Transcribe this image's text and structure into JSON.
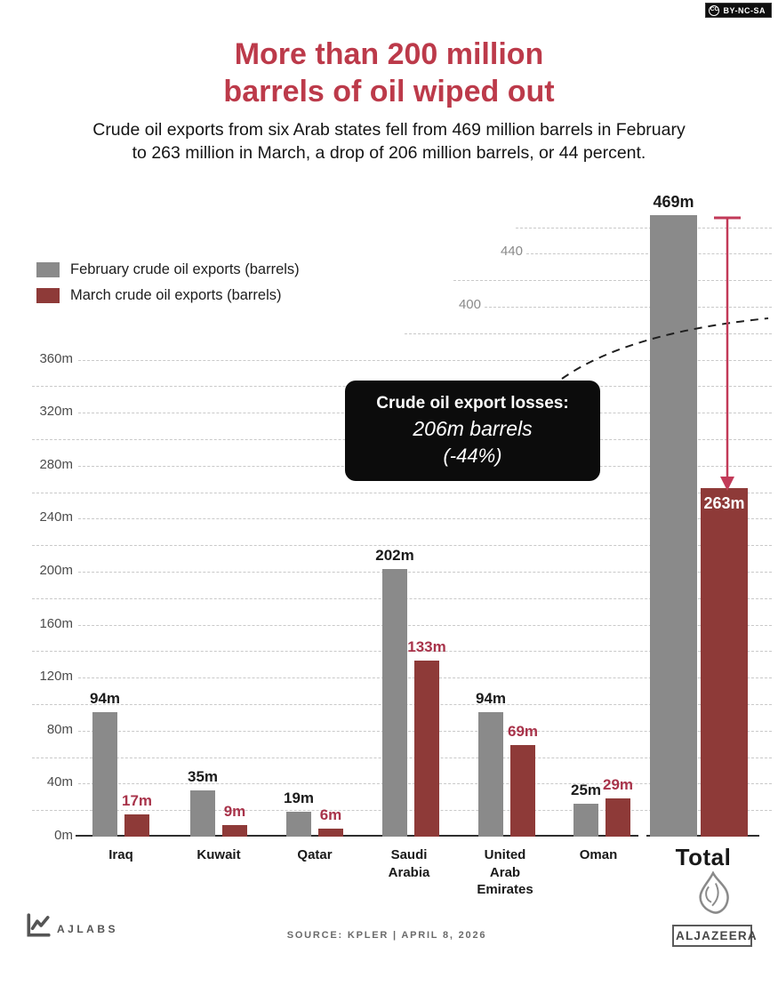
{
  "license_badge": {
    "icon": "CC",
    "label": "BY-NC-SA"
  },
  "header": {
    "title_line1": "More than 200 million",
    "title_line2": "barrels of oil wiped out",
    "subtitle_line1": "Crude oil exports from six Arab states fell from 469 million barrels in February",
    "subtitle_line2": "to 263 million in March, a drop of 206 million barrels, or 44 percent."
  },
  "colors": {
    "title": "#bc3a4a",
    "feb_bar": "#8a8a8a",
    "mar_bar": "#8e3a38",
    "feb_value_label": "#1b1b1b",
    "mar_value_label": "#a8334a",
    "total_mar_value_label": "#ffffff",
    "drop_arrow": "#c23a58",
    "gridline": "#c9c9c9"
  },
  "legend": {
    "items": [
      {
        "label": "February crude oil exports (barrels)",
        "color": "#8a8a8a"
      },
      {
        "label": "March crude oil exports (barrels)",
        "color": "#8e3a38"
      }
    ]
  },
  "callout": {
    "title": "Crude oil export losses:",
    "value": "206m barrels",
    "percent": "(-44%)"
  },
  "chart_data": {
    "type": "bar",
    "title": "More than 200 million barrels of oil wiped out",
    "unit": "million barrels",
    "categories": [
      "Iraq",
      "Kuwait",
      "Qatar",
      "Saudi Arabia",
      "United Arab Emirates",
      "Oman",
      "Total"
    ],
    "category_label_lines": [
      [
        "Iraq"
      ],
      [
        "Kuwait"
      ],
      [
        "Qatar"
      ],
      [
        "Saudi",
        "Arabia"
      ],
      [
        "United",
        "Arab",
        "Emirates"
      ],
      [
        "Oman"
      ],
      [
        "Total"
      ]
    ],
    "series": [
      {
        "name": "February crude oil exports (barrels)",
        "color": "#8a8a8a",
        "values": [
          94,
          35,
          19,
          202,
          94,
          25,
          469
        ]
      },
      {
        "name": "March crude oil exports (barrels)",
        "color": "#8e3a38",
        "values": [
          17,
          9,
          6,
          133,
          69,
          29,
          263
        ]
      }
    ],
    "value_label_suffix": "m",
    "y_axis": {
      "labeled_ticks_m": [
        0,
        40,
        80,
        120,
        160,
        200,
        240,
        280,
        320,
        360
      ],
      "tick_label_suffix": "m",
      "right_ticks": [
        {
          "m": 400,
          "label": "400"
        },
        {
          "m": 440,
          "label": "440"
        }
      ],
      "grid_interval_m": 20,
      "grid_max_m": 460,
      "ylim": [
        0,
        480
      ],
      "grid": true
    },
    "legend_position": "upper-left",
    "annotations": {
      "loss_note": [
        "Crude oil export losses:",
        "206m barrels",
        "(-44%)"
      ],
      "drop_from": "469m",
      "drop_to": "263m"
    }
  },
  "footer": {
    "ajlabs_label": "AJLABS",
    "source_line": "SOURCE:  KPLER   |   APRIL 8, 2026",
    "aljazeera_label": "ALJAZEERA"
  }
}
